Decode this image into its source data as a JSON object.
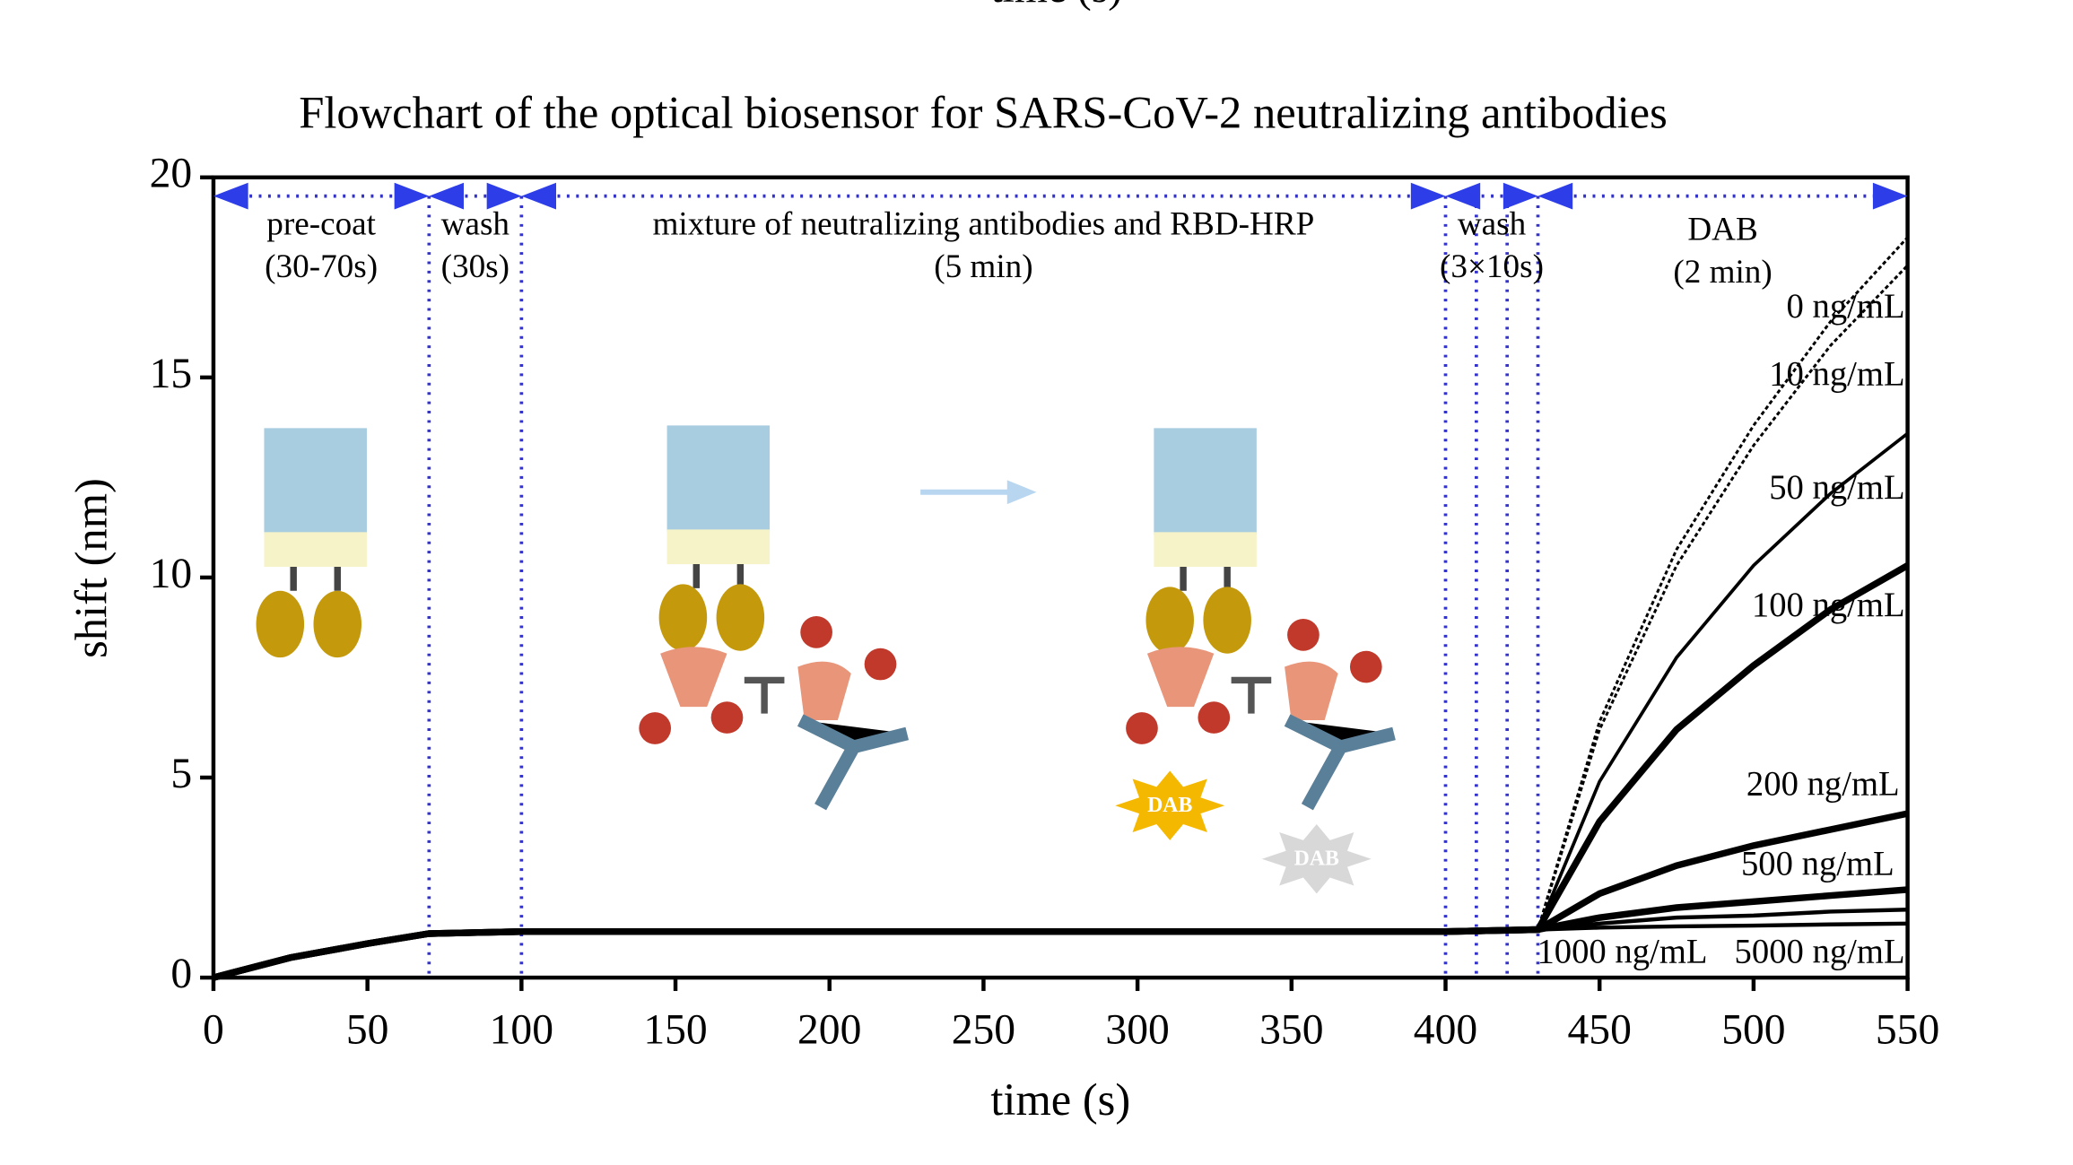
{
  "cropped_header": "time (s)",
  "chart_data": {
    "type": "line",
    "title": "Flowchart of the optical biosensor for SARS-CoV-2 neutralizing antibodies",
    "x_label": "time (s)",
    "y_label": "shift (nm)",
    "xlim": [
      0,
      550
    ],
    "ylim": [
      0,
      20
    ],
    "xticks": [
      0,
      50,
      100,
      150,
      200,
      250,
      300,
      350,
      400,
      450,
      500,
      550
    ],
    "yticks": [
      0,
      5,
      10,
      15,
      20
    ],
    "x": [
      0,
      25,
      50,
      70,
      100,
      200,
      300,
      400,
      430,
      450,
      475,
      500,
      525,
      550
    ],
    "series": [
      {
        "name": "0 ng/mL",
        "color": "#000000",
        "values": [
          0,
          0.5,
          0.85,
          1.1,
          1.15,
          1.15,
          1.15,
          1.15,
          1.2,
          6.4,
          10.7,
          13.8,
          16.4,
          18.5
        ]
      },
      {
        "name": "10 ng/mL",
        "color": "#000000",
        "values": [
          0,
          0.5,
          0.85,
          1.1,
          1.15,
          1.15,
          1.15,
          1.15,
          1.2,
          6.2,
          10.3,
          13.3,
          15.8,
          17.8
        ]
      },
      {
        "name": "50 ng/mL",
        "color": "#000000",
        "values": [
          0,
          0.5,
          0.85,
          1.1,
          1.15,
          1.15,
          1.15,
          1.15,
          1.2,
          4.9,
          8.0,
          10.3,
          12.1,
          13.6
        ]
      },
      {
        "name": "100 ng/mL",
        "color": "#000000",
        "values": [
          0,
          0.5,
          0.85,
          1.1,
          1.15,
          1.15,
          1.15,
          1.15,
          1.2,
          3.9,
          6.2,
          7.8,
          9.2,
          10.3
        ]
      },
      {
        "name": "200 ng/mL",
        "color": "#000000",
        "values": [
          0,
          0.5,
          0.85,
          1.1,
          1.15,
          1.15,
          1.15,
          1.15,
          1.2,
          2.1,
          2.8,
          3.3,
          3.7,
          4.1
        ]
      },
      {
        "name": "500 ng/mL",
        "color": "#000000",
        "values": [
          0,
          0.5,
          0.85,
          1.1,
          1.15,
          1.15,
          1.15,
          1.15,
          1.2,
          1.5,
          1.75,
          1.9,
          2.05,
          2.2
        ]
      },
      {
        "name": "1000 ng/mL",
        "color": "#000000",
        "values": [
          0,
          0.5,
          0.85,
          1.1,
          1.15,
          1.15,
          1.15,
          1.15,
          1.2,
          1.35,
          1.5,
          1.55,
          1.65,
          1.7
        ]
      },
      {
        "name": "5000 ng/mL",
        "color": "#000000",
        "values": [
          0,
          0.5,
          0.85,
          1.1,
          1.15,
          1.15,
          1.15,
          1.15,
          1.2,
          1.25,
          1.28,
          1.3,
          1.33,
          1.35
        ]
      }
    ],
    "phase_lines": [
      70,
      100,
      400,
      410,
      420,
      430
    ],
    "phase_line_color": "#3333cc",
    "phases": [
      {
        "label": "pre-coat",
        "duration": "(30-70s)",
        "span": [
          0,
          70
        ]
      },
      {
        "label": "wash",
        "duration": "(30s)",
        "span": [
          70,
          100
        ]
      },
      {
        "label": "mixture of neutralizing antibodies and RBD-HRP",
        "duration": "(5 min)",
        "span": [
          100,
          400
        ]
      },
      {
        "label": "wash",
        "duration": "(3×10s)",
        "span": [
          400,
          430
        ]
      },
      {
        "label": "DAB",
        "duration": "(2 min)",
        "span": [
          430,
          550
        ]
      }
    ],
    "illustration_labels": [
      "DAB",
      "DAB"
    ]
  }
}
